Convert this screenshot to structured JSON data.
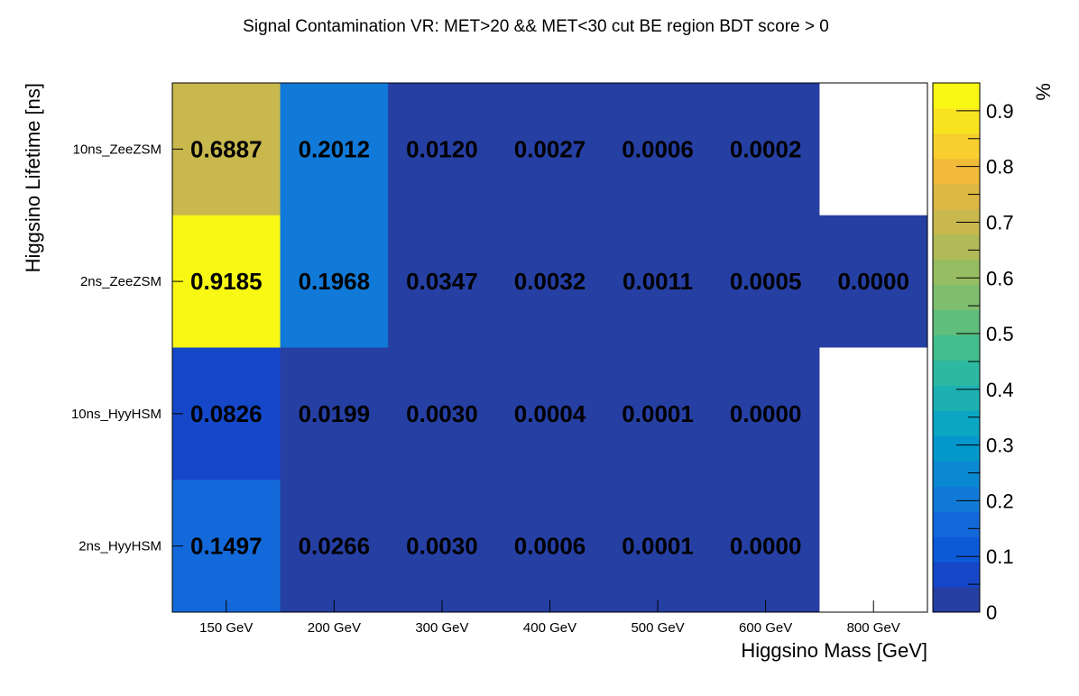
{
  "chart_data": {
    "type": "heatmap",
    "title": "Signal Contamination VR: MET>20 && MET<30 cut BE region BDT score > 0",
    "xlabel": "Higgsino Mass [GeV]",
    "ylabel": "Higgsino Lifetime [ns]",
    "zlabel": "%",
    "x_categories": [
      "150 GeV",
      "200 GeV",
      "300 GeV",
      "400 GeV",
      "500 GeV",
      "600 GeV",
      "800 GeV"
    ],
    "y_categories": [
      "10ns_ZeeZSM",
      "2ns_ZeeZSM",
      "10ns_HyyHSM",
      "2ns_HyyHSM"
    ],
    "z_range": [
      0,
      0.95
    ],
    "z_ticks": [
      0,
      0.1,
      0.2,
      0.3,
      0.4,
      0.5,
      0.6,
      0.7,
      0.8,
      0.9
    ],
    "z_tick_labels": [
      "0",
      "0.1",
      "0.2",
      "0.3",
      "0.4",
      "0.5",
      "0.6",
      "0.7",
      "0.8",
      "0.9"
    ],
    "values": [
      [
        0.6887,
        0.2012,
        0.012,
        0.0027,
        0.0006,
        0.0002,
        null
      ],
      [
        0.9185,
        0.1968,
        0.0347,
        0.0032,
        0.0011,
        0.0005,
        0.0
      ],
      [
        0.0826,
        0.0199,
        0.003,
        0.0004,
        0.0001,
        0.0,
        null
      ],
      [
        0.1497,
        0.0266,
        0.003,
        0.0006,
        0.0001,
        0.0,
        null
      ]
    ],
    "value_labels": [
      [
        "0.6887",
        "0.2012",
        "0.0120",
        "0.0027",
        "0.0006",
        "0.0002",
        ""
      ],
      [
        "0.9185",
        "0.1968",
        "0.0347",
        "0.0032",
        "0.0011",
        "0.0005",
        "0.0000"
      ],
      [
        "0.0826",
        "0.0199",
        "0.0030",
        "0.0004",
        "0.0001",
        "0.0000",
        ""
      ],
      [
        "0.1497",
        "0.0266",
        "0.0030",
        "0.0006",
        "0.0001",
        "0.0000",
        ""
      ]
    ],
    "palette": [
      "#263fa3",
      "#1547c8",
      "#0c5ad8",
      "#1469da",
      "#117ad8",
      "#0a89d2",
      "#0497cc",
      "#0ba6c3",
      "#1db0b3",
      "#2cb8a1",
      "#43bd8e",
      "#60be7d",
      "#7ebe6e",
      "#97bd62",
      "#b0bb57",
      "#c8b84d",
      "#ddb743",
      "#f1ba38",
      "#f8cf2e",
      "#f9e321",
      "#f8f814"
    ],
    "colors": {
      "empty_cell": "#ffffff",
      "text": "#000000",
      "frame": "#000000"
    },
    "grid": false
  }
}
